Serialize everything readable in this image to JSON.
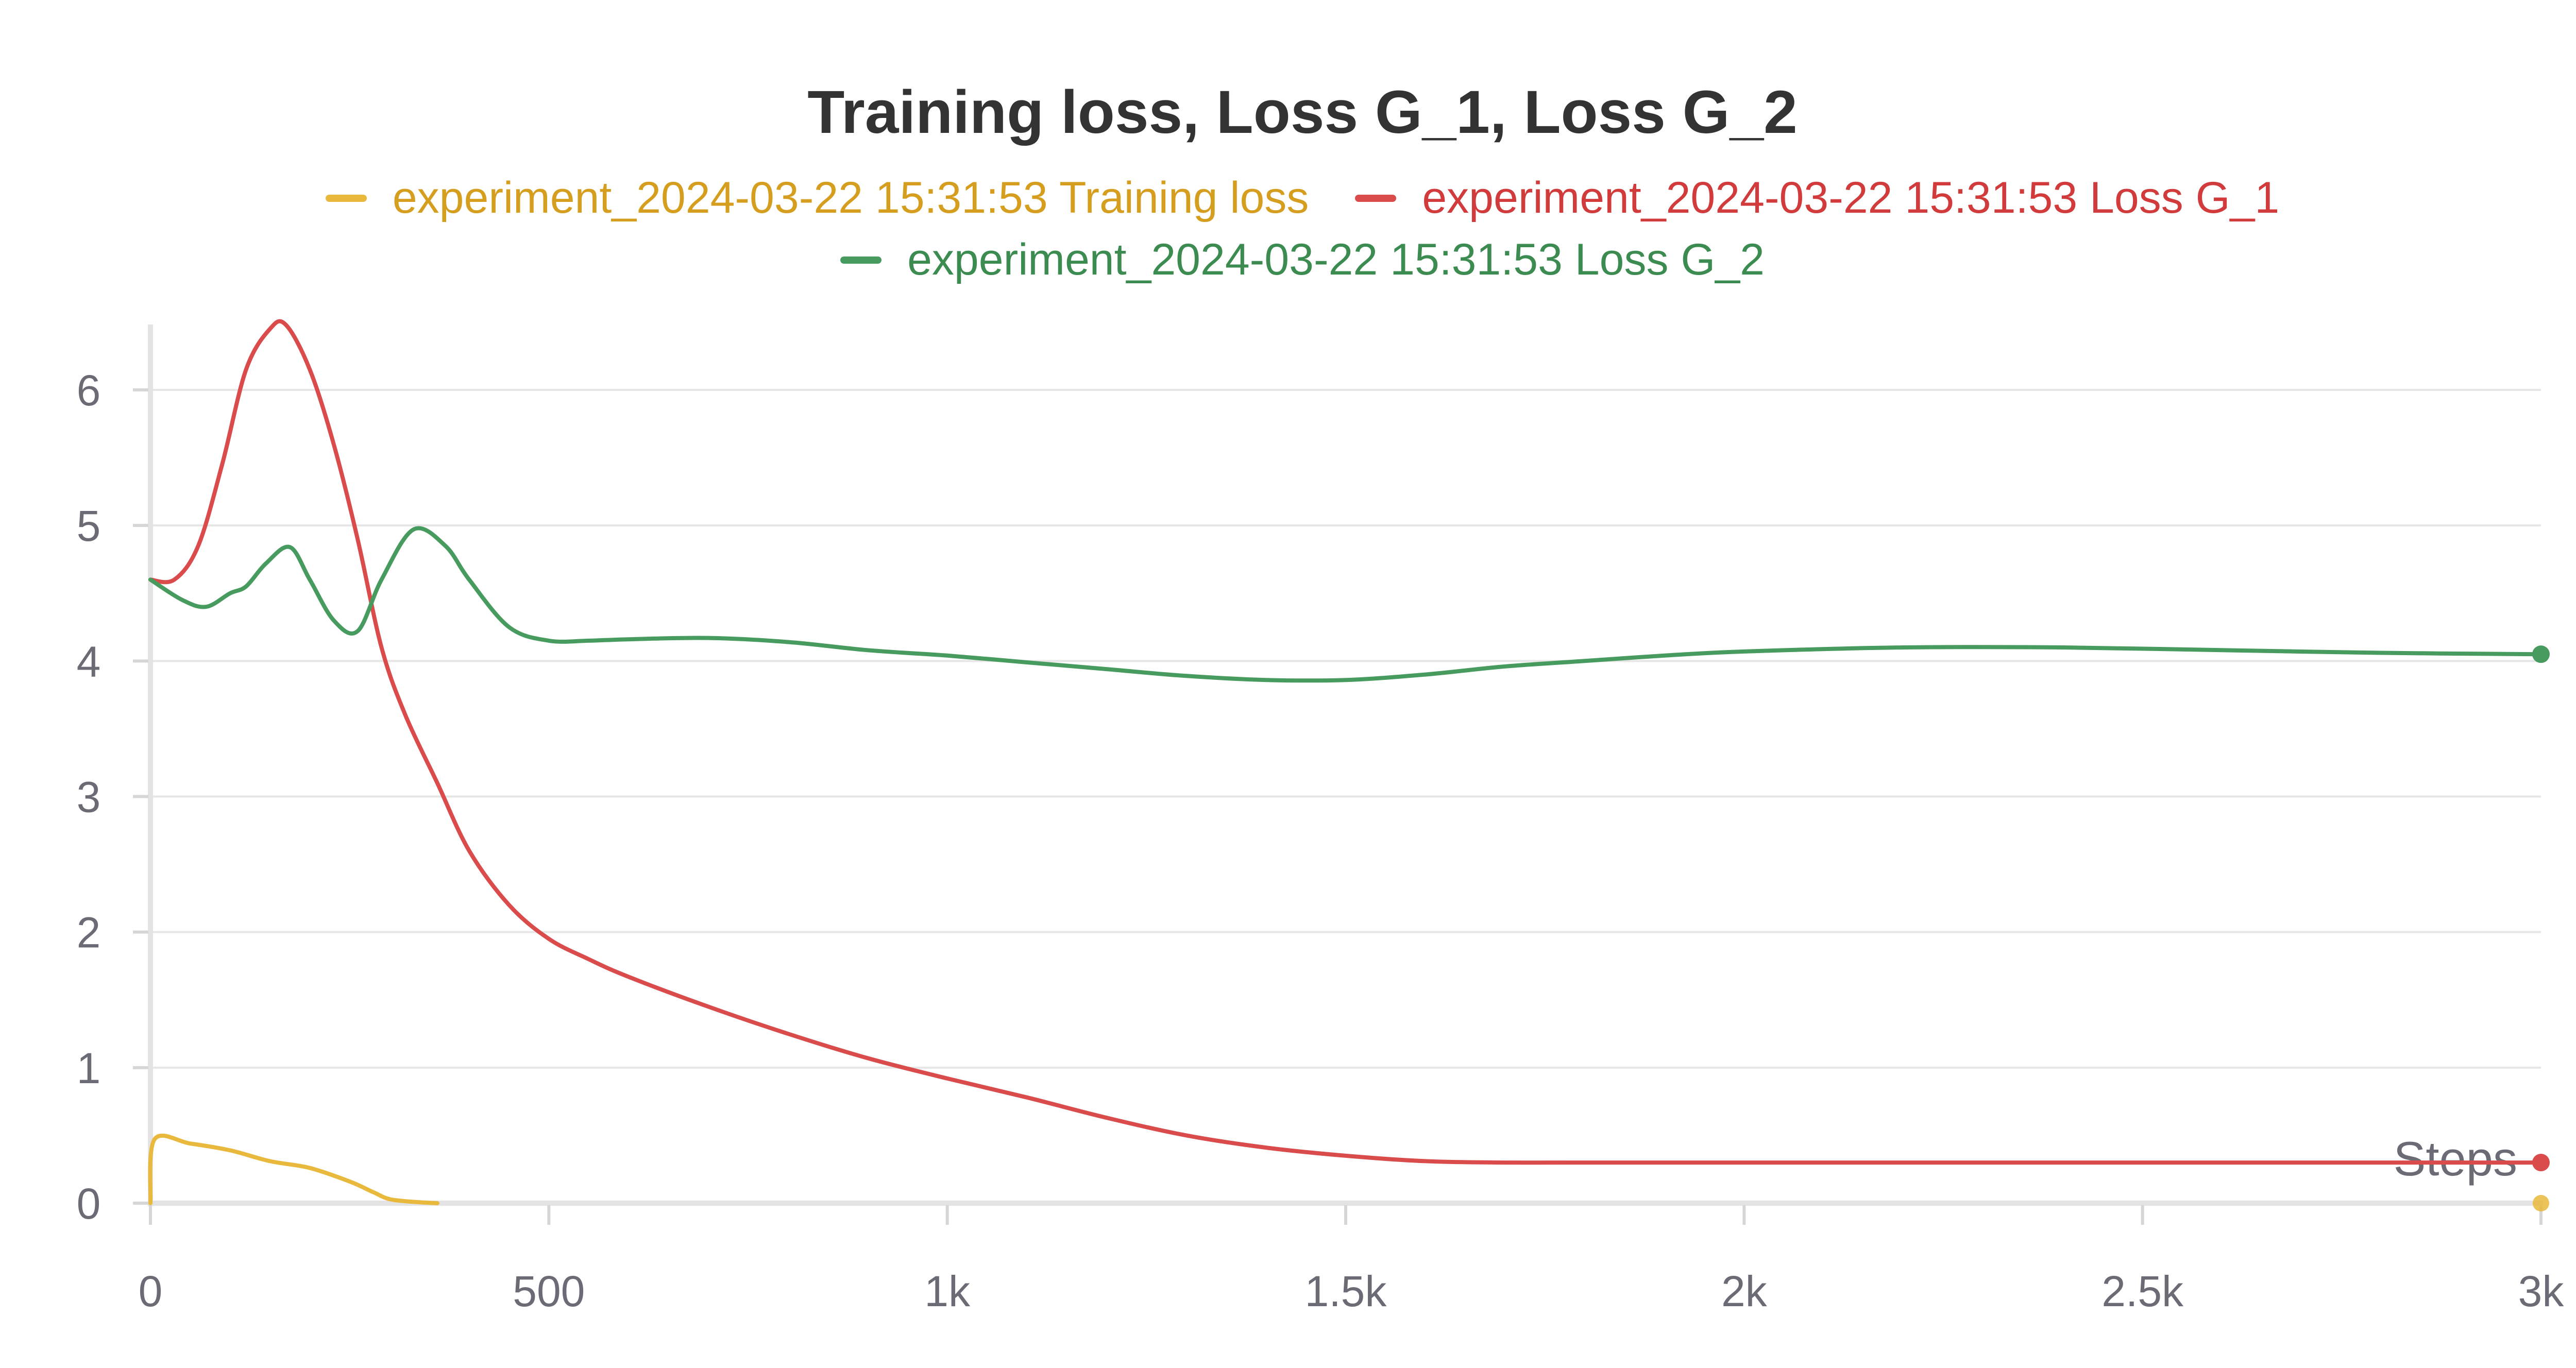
{
  "chart_data": {
    "type": "line",
    "title": "Training loss, Loss G_1, Loss G_2",
    "xlabel": "Steps",
    "ylabel": "",
    "xlim": [
      0,
      3000
    ],
    "ylim": [
      0,
      6.5
    ],
    "x_ticks": [
      0,
      500,
      1000,
      1500,
      2000,
      2500,
      3000
    ],
    "x_tick_labels": [
      "0",
      "500",
      "1k",
      "1.5k",
      "2k",
      "2.5k",
      "3k"
    ],
    "y_ticks": [
      0,
      1,
      2,
      3,
      4,
      5,
      6
    ],
    "y_tick_labels": [
      "0",
      "1",
      "2",
      "3",
      "4",
      "5",
      "6"
    ],
    "grid": true,
    "legend_position": "top-center",
    "series": [
      {
        "name": "experiment_2024-03-22 15:31:53 Training loss",
        "color": "#e8b93c",
        "text_color": "#d69e1f",
        "x": [
          0,
          5,
          50,
          100,
          150,
          200,
          250,
          280,
          300,
          330,
          360
        ],
        "y": [
          0,
          0.47,
          0.44,
          0.39,
          0.31,
          0.26,
          0.16,
          0.08,
          0.03,
          0.01,
          0.0
        ],
        "end_marker": false
      },
      {
        "name": "experiment_2024-03-22 15:31:53 Loss G_1",
        "color": "#da4c4c",
        "text_color": "#d13b3b",
        "x": [
          0,
          30,
          60,
          90,
          120,
          150,
          170,
          200,
          230,
          260,
          290,
          320,
          360,
          400,
          450,
          500,
          550,
          600,
          700,
          800,
          900,
          1000,
          1100,
          1200,
          1300,
          1400,
          1500,
          1600,
          1700,
          1800,
          2000,
          2200,
          2400,
          2600,
          2800,
          3000
        ],
        "y": [
          4.6,
          4.6,
          4.85,
          5.45,
          6.15,
          6.45,
          6.48,
          6.15,
          5.6,
          4.9,
          4.1,
          3.6,
          3.1,
          2.6,
          2.2,
          1.95,
          1.8,
          1.67,
          1.45,
          1.25,
          1.07,
          0.92,
          0.78,
          0.63,
          0.5,
          0.41,
          0.35,
          0.31,
          0.3,
          0.3,
          0.3,
          0.3,
          0.3,
          0.3,
          0.3,
          0.3
        ],
        "end_marker": true
      },
      {
        "name": "experiment_2024-03-22 15:31:53 Loss G_2",
        "color": "#489b5e",
        "text_color": "#3c8b50",
        "x": [
          0,
          40,
          70,
          100,
          120,
          145,
          175,
          200,
          230,
          260,
          290,
          330,
          370,
          400,
          450,
          500,
          550,
          600,
          700,
          800,
          900,
          1000,
          1100,
          1200,
          1300,
          1400,
          1500,
          1600,
          1700,
          1800,
          1900,
          2000,
          2200,
          2400,
          2600,
          2800,
          3000
        ],
        "y": [
          4.6,
          4.45,
          4.4,
          4.5,
          4.55,
          4.72,
          4.84,
          4.6,
          4.3,
          4.22,
          4.6,
          4.97,
          4.85,
          4.6,
          4.25,
          4.15,
          4.15,
          4.16,
          4.17,
          4.14,
          4.08,
          4.04,
          3.99,
          3.94,
          3.89,
          3.86,
          3.86,
          3.9,
          3.96,
          4.0,
          4.04,
          4.07,
          4.1,
          4.1,
          4.08,
          4.06,
          4.05
        ],
        "end_marker": true
      }
    ]
  }
}
